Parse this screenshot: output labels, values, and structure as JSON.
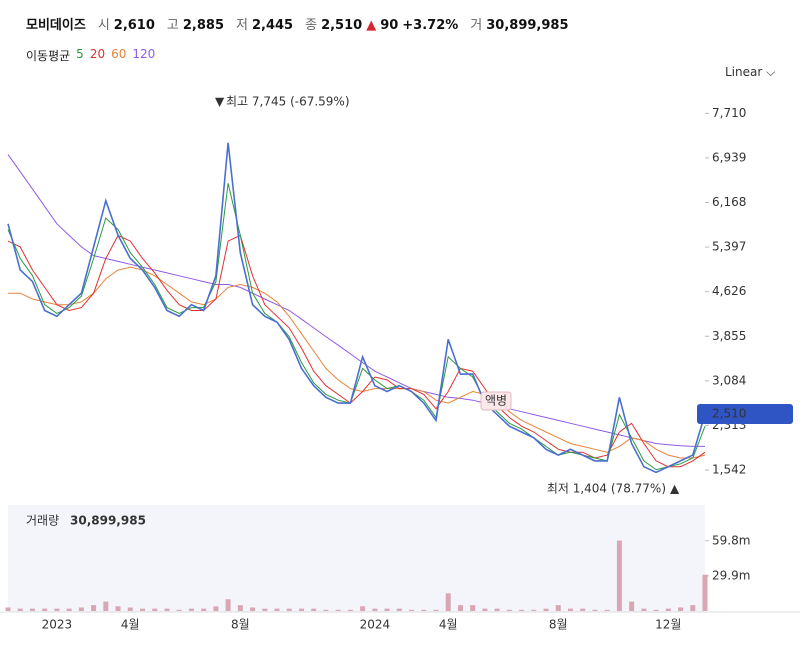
{
  "header": {
    "name": "모비데이즈",
    "fields": [
      {
        "label": "시",
        "value": "2,610"
      },
      {
        "label": "고",
        "value": "2,885"
      },
      {
        "label": "저",
        "value": "2,445"
      },
      {
        "label": "종",
        "value": "2,510"
      }
    ],
    "change": "90",
    "change_pct": "+3.72%",
    "volume_label": "거",
    "volume": "30,899,985"
  },
  "scale_selector": "Linear",
  "chart_data": [
    {
      "type": "line",
      "color": "#4a6fd1",
      "legend_title": "이동평균",
      "categories": [
        null,
        null,
        null,
        null,
        "2023",
        null,
        null,
        null,
        null,
        null,
        "4월",
        null,
        null,
        null,
        null,
        null,
        null,
        null,
        null,
        "8월",
        null,
        null,
        null,
        null,
        null,
        null,
        null,
        null,
        null,
        null,
        "2024",
        null,
        null,
        null,
        null,
        null,
        "4월",
        null,
        null,
        null,
        null,
        null,
        null,
        null,
        null,
        "8월",
        null,
        null,
        null,
        null,
        null,
        null,
        null,
        null,
        "12월",
        null,
        null,
        null
      ],
      "values": [
        5800,
        5000,
        4800,
        4300,
        4200,
        4400,
        4600,
        5400,
        6200,
        5600,
        5200,
        5000,
        4700,
        4300,
        4200,
        4400,
        4300,
        4900,
        7200,
        5300,
        4400,
        4200,
        4100,
        3800,
        3300,
        3000,
        2800,
        2700,
        2700,
        3500,
        3000,
        2900,
        3000,
        2900,
        2700,
        2400,
        3800,
        3200,
        3200,
        2700,
        2500,
        2300,
        2200,
        2100,
        1900,
        1800,
        1900,
        1800,
        1700,
        1700,
        2800,
        2000,
        1600,
        1500,
        1600,
        1700,
        1800,
        2510
      ],
      "series": [
        {
          "name": "5",
          "color": "#2b9a3e",
          "values": [
            5700,
            5200,
            4900,
            4400,
            4250,
            4350,
            4550,
            5200,
            5900,
            5700,
            5300,
            5050,
            4750,
            4350,
            4250,
            4350,
            4350,
            4800,
            6500,
            5600,
            4600,
            4250,
            4100,
            3850,
            3400,
            3050,
            2850,
            2750,
            2700,
            3300,
            3100,
            2950,
            3000,
            2900,
            2750,
            2450,
            3500,
            3300,
            3150,
            2750,
            2550,
            2350,
            2250,
            2100,
            1950,
            1800,
            1850,
            1800,
            1750,
            1700,
            2500,
            2100,
            1700,
            1550,
            1600,
            1650,
            1750,
            2300
          ]
        },
        {
          "name": "20",
          "color": "#e03131",
          "values": [
            5500,
            5400,
            5000,
            4700,
            4400,
            4300,
            4350,
            4600,
            5200,
            5600,
            5500,
            5200,
            4950,
            4650,
            4400,
            4300,
            4300,
            4500,
            5500,
            5600,
            4900,
            4400,
            4200,
            4000,
            3650,
            3250,
            3000,
            2850,
            2700,
            2900,
            3150,
            3100,
            2950,
            2950,
            2850,
            2600,
            2900,
            3300,
            3250,
            2950,
            2650,
            2450,
            2300,
            2200,
            2050,
            1900,
            1850,
            1850,
            1750,
            1800,
            2200,
            2350,
            2000,
            1700,
            1600,
            1600,
            1700,
            1850
          ]
        },
        {
          "name": "60",
          "color": "#e8833a",
          "values": [
            4600,
            4600,
            4500,
            4450,
            4400,
            4400,
            4450,
            4600,
            4850,
            5000,
            5050,
            5000,
            4900,
            4750,
            4600,
            4450,
            4400,
            4500,
            4700,
            4750,
            4700,
            4600,
            4450,
            4200,
            3900,
            3600,
            3300,
            3100,
            2950,
            2900,
            2950,
            2950,
            2950,
            2950,
            2900,
            2750,
            2700,
            2800,
            2900,
            2850,
            2700,
            2550,
            2400,
            2300,
            2200,
            2100,
            2000,
            1950,
            1900,
            1850,
            1950,
            2100,
            2050,
            1900,
            1800,
            1750,
            1750,
            1800
          ]
        },
        {
          "name": "120",
          "color": "#8e5ce6",
          "values": [
            7000,
            6700,
            6400,
            6100,
            5800,
            5600,
            5400,
            5250,
            5200,
            5150,
            5100,
            5050,
            5000,
            4950,
            4900,
            4850,
            4800,
            4750,
            4750,
            4700,
            4600,
            4500,
            4400,
            4300,
            4150,
            4000,
            3850,
            3700,
            3550,
            3400,
            3250,
            3150,
            3050,
            2950,
            2900,
            2850,
            2800,
            2780,
            2750,
            2700,
            2650,
            2600,
            2550,
            2500,
            2450,
            2400,
            2350,
            2300,
            2250,
            2200,
            2150,
            2100,
            2050,
            2000,
            1980,
            1960,
            1950,
            1950
          ]
        }
      ],
      "ylim": [
        1110,
        8200
      ],
      "yticks": [
        {
          "value": 7710,
          "label": "7,710"
        },
        {
          "value": 6939,
          "label": "6,939"
        },
        {
          "value": 6168,
          "label": "6,168"
        },
        {
          "value": 5397,
          "label": "5,397"
        },
        {
          "value": 4626,
          "label": "4,626"
        },
        {
          "value": 3855,
          "label": "3,855"
        },
        {
          "value": 3084,
          "label": "3,084"
        },
        {
          "value": 2313,
          "label": "2,313"
        },
        {
          "value": 1542,
          "label": "1,542"
        }
      ],
      "price_tag": "2,510",
      "annotations": [
        "최고 7,745 (-67.59%)",
        "최저 1,404 (78.77%)",
        "액병"
      ]
    },
    {
      "type": "bar",
      "title": "거래량",
      "current": "30,899,985",
      "color": "#d9a6b3",
      "values": [
        3000000,
        2000000,
        2000000,
        2000000,
        2000000,
        2000000,
        3000000,
        5000000,
        8000000,
        4000000,
        3000000,
        2000000,
        2000000,
        2000000,
        1000000,
        2000000,
        2000000,
        4000000,
        10000000,
        5000000,
        3000000,
        2000000,
        2000000,
        2000000,
        2000000,
        2000000,
        1000000,
        1000000,
        1000000,
        4000000,
        2000000,
        2000000,
        2000000,
        1000000,
        1000000,
        1000000,
        15000000,
        5000000,
        5000000,
        2000000,
        2000000,
        1000000,
        1000000,
        1000000,
        2000000,
        5000000,
        2000000,
        2000000,
        1000000,
        1000000,
        60000000,
        8000000,
        2000000,
        1000000,
        2000000,
        3000000,
        5000000,
        30899985
      ],
      "ylim": [
        0,
        86000000
      ],
      "yticks": [
        {
          "value": 59800000,
          "label": "59.8m"
        },
        {
          "value": 29900000,
          "label": "29.9m"
        }
      ]
    }
  ]
}
